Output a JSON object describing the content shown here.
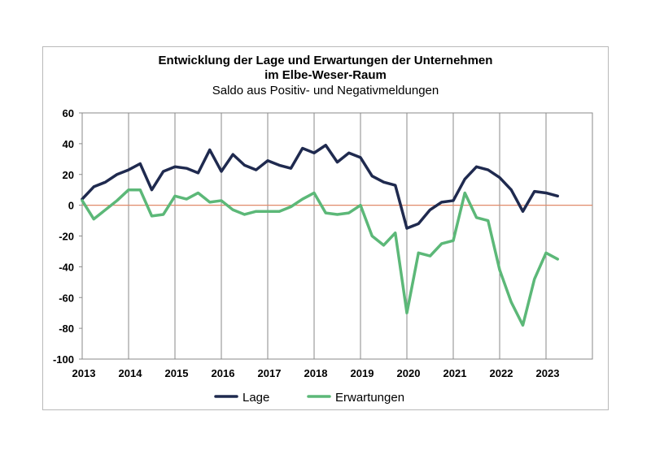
{
  "chart_data": {
    "type": "line",
    "title": "Entwicklung der Lage und Erwartungen der Unternehmen",
    "title_line2": "im Elbe-Weser-Raum",
    "subtitle": "Saldo aus Positiv- und Negativmeldungen",
    "xlabel": "",
    "ylabel": "",
    "ylim": [
      -100,
      60
    ],
    "yticks": [
      60,
      40,
      20,
      0,
      -20,
      -40,
      -60,
      -80,
      -100
    ],
    "xlim": [
      2013,
      2024
    ],
    "xticks": [
      "2013",
      "2014",
      "2015",
      "2016",
      "2017",
      "2018",
      "2019",
      "2020",
      "2021",
      "2022",
      "2023"
    ],
    "grid": "vertical",
    "legend": "bottom",
    "series": [
      {
        "name": "Lage",
        "color": "#1f2a4f",
        "x": [
          2013.0,
          2013.25,
          2013.5,
          2013.75,
          2014.0,
          2014.25,
          2014.5,
          2014.75,
          2015.0,
          2015.25,
          2015.5,
          2015.75,
          2016.0,
          2016.25,
          2016.5,
          2016.75,
          2017.0,
          2017.25,
          2017.5,
          2017.75,
          2018.0,
          2018.25,
          2018.5,
          2018.75,
          2019.0,
          2019.25,
          2019.5,
          2019.75,
          2020.0,
          2020.25,
          2020.5,
          2020.75,
          2021.0,
          2021.25,
          2021.5,
          2021.75,
          2022.0,
          2022.25,
          2022.5,
          2022.75,
          2023.0,
          2023.25
        ],
        "values": [
          4,
          12,
          15,
          20,
          23,
          27,
          10,
          22,
          25,
          24,
          21,
          36,
          22,
          33,
          26,
          23,
          29,
          26,
          24,
          37,
          34,
          39,
          28,
          34,
          31,
          19,
          15,
          13,
          -15,
          -12,
          -3,
          2,
          3,
          17,
          25,
          23,
          18,
          10,
          -4,
          9,
          8,
          6
        ]
      },
      {
        "name": "Erwartungen",
        "color": "#5cb878",
        "x": [
          2013.0,
          2013.25,
          2013.5,
          2013.75,
          2014.0,
          2014.25,
          2014.5,
          2014.75,
          2015.0,
          2015.25,
          2015.5,
          2015.75,
          2016.0,
          2016.25,
          2016.5,
          2016.75,
          2017.0,
          2017.25,
          2017.5,
          2017.75,
          2018.0,
          2018.25,
          2018.5,
          2018.75,
          2019.0,
          2019.25,
          2019.5,
          2019.75,
          2020.0,
          2020.25,
          2020.5,
          2020.75,
          2021.0,
          2021.25,
          2021.5,
          2021.75,
          2022.0,
          2022.25,
          2022.5,
          2022.75,
          2023.0,
          2023.25
        ],
        "values": [
          3,
          -9,
          -3,
          3,
          10,
          10,
          -7,
          -6,
          6,
          4,
          8,
          2,
          3,
          -3,
          -6,
          -4,
          -4,
          -4,
          -1,
          4,
          8,
          -5,
          -6,
          -5,
          0,
          -20,
          -26,
          -18,
          -70,
          -31,
          -33,
          -25,
          -23,
          8,
          -8,
          -10,
          -42,
          -63,
          -78,
          -48,
          -31,
          -35
        ]
      }
    ],
    "zero_line_color": "#e08a6a"
  }
}
